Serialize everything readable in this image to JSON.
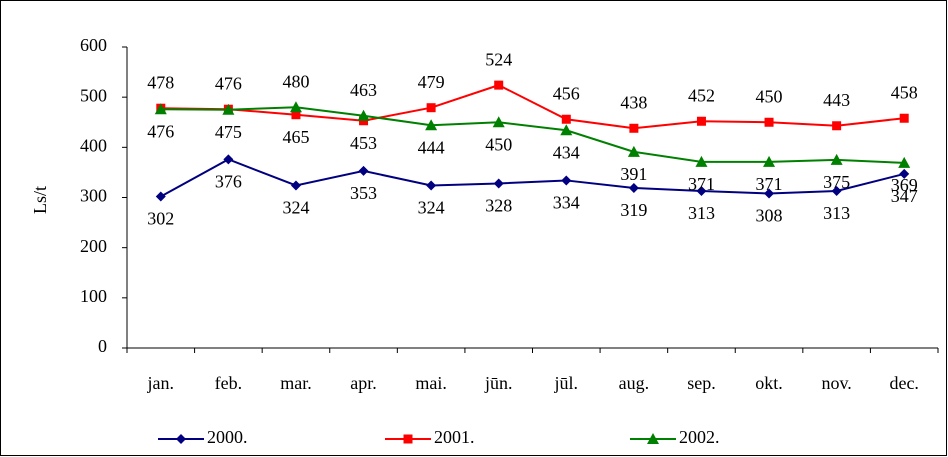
{
  "chart_data": {
    "type": "line",
    "y_label": "Ls/t",
    "categories": [
      "jan.",
      "feb.",
      "mar.",
      "apr.",
      "mai.",
      "jūn.",
      "jūl.",
      "aug.",
      "sep.",
      "okt.",
      "nov.",
      "dec."
    ],
    "series": [
      {
        "name": "2000.",
        "color": "#000080",
        "marker": "diamond",
        "values": [
          302,
          376,
          324,
          353,
          324,
          328,
          334,
          319,
          313,
          308,
          313,
          347
        ]
      },
      {
        "name": "2001.",
        "color": "#ff0000",
        "marker": "square",
        "values": [
          478,
          476,
          465,
          453,
          479,
          524,
          456,
          438,
          452,
          450,
          443,
          458
        ]
      },
      {
        "name": "2002.",
        "color": "#008000",
        "marker": "triangle",
        "values": [
          476,
          475,
          480,
          463,
          444,
          450,
          434,
          391,
          371,
          371,
          375,
          369
        ]
      }
    ],
    "ylim": [
      0,
      600
    ],
    "yticks": [
      0,
      100,
      200,
      300,
      400,
      500,
      600
    ],
    "grid": false
  }
}
